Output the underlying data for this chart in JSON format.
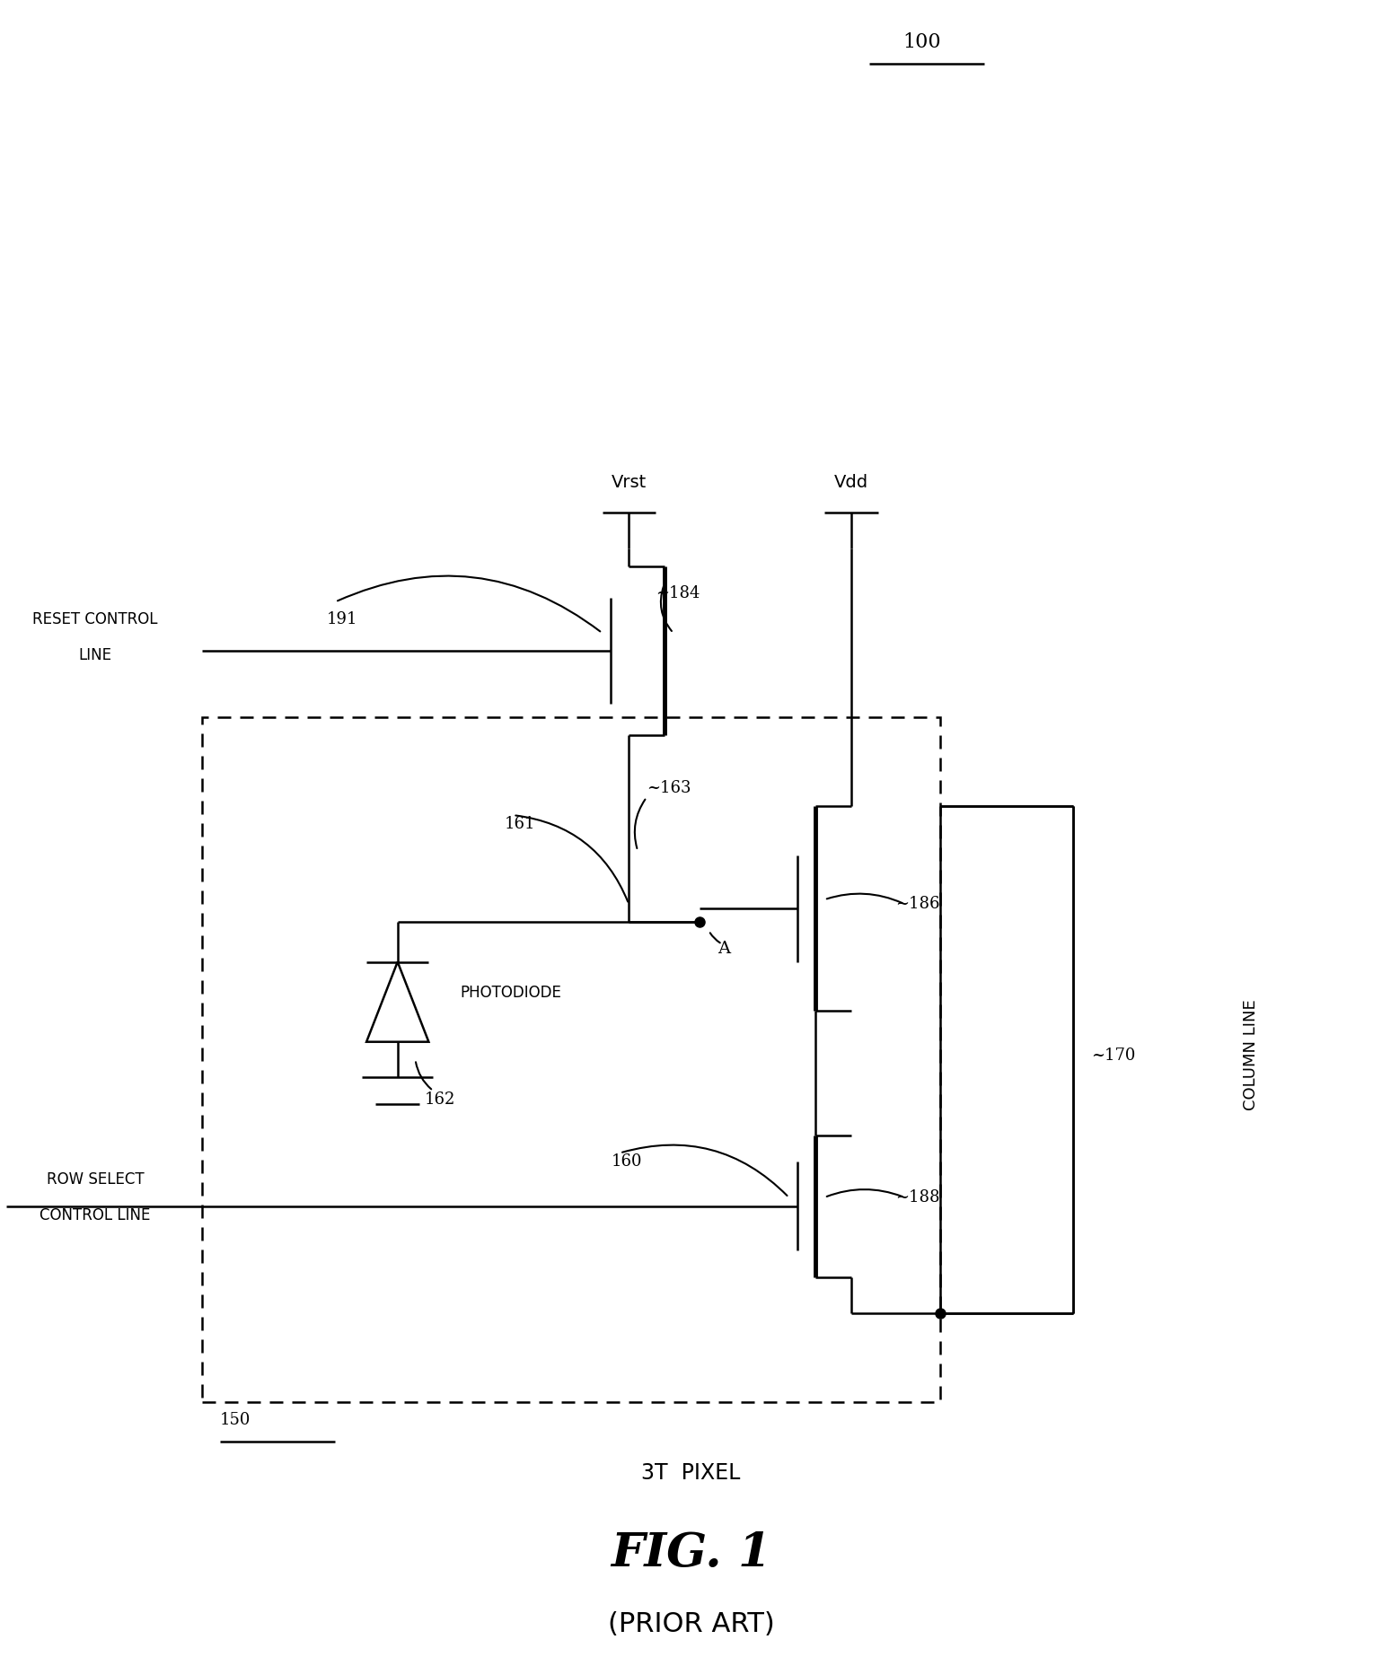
{
  "bg": "#ffffff",
  "fig_w": 15.49,
  "fig_h": 18.46,
  "dpi": 100,
  "title": "100",
  "vrst": "Vrst",
  "vdd": "Vdd",
  "label_191": "191",
  "label_184": "—184",
  "label_163": "—163",
  "label_161": "161",
  "label_186": "—186",
  "label_A": "A",
  "label_pd": "PHOTODIODE",
  "label_162": "162",
  "label_160": "160",
  "label_188": "—188",
  "label_150": "150",
  "label_170": "—170",
  "label_col": "COLUMN LINE",
  "label_reset1": "RESET CONTROL",
  "label_reset2": "LINE",
  "label_row1": "ROW SELECT",
  "label_row2": "CONTROL LINE",
  "label_3t": "3T  PIXEL",
  "label_fig": "FIG. 1",
  "label_prior": "(PRIOR ART)"
}
